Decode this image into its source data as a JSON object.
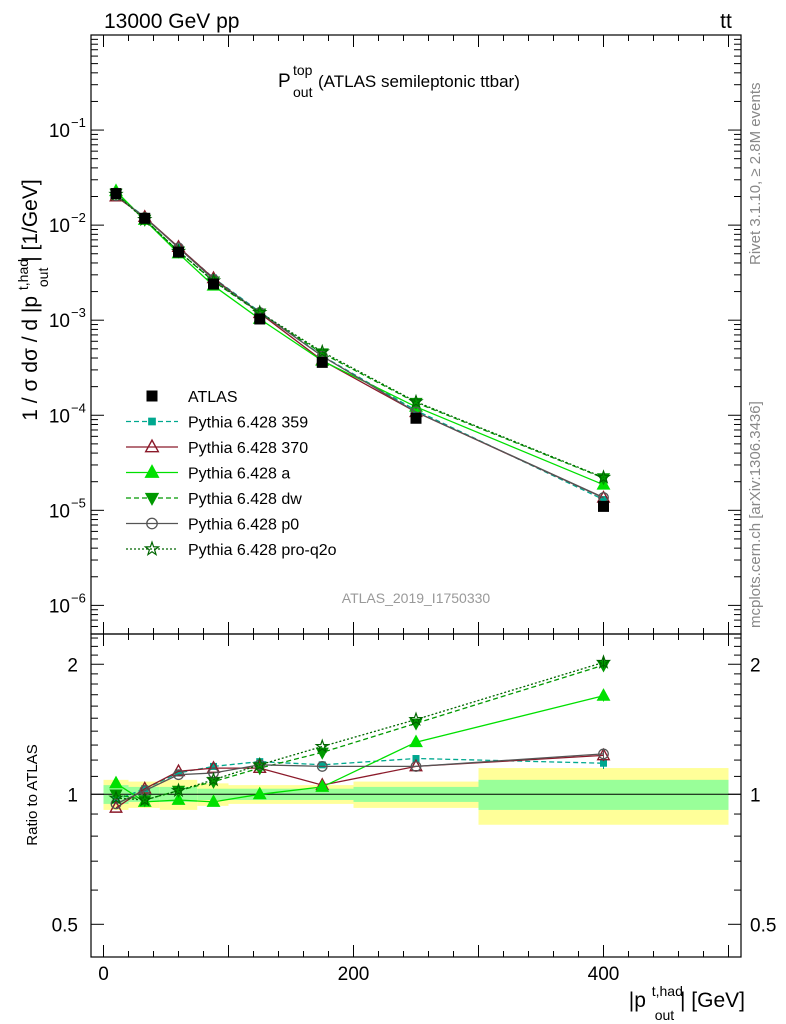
{
  "header": {
    "left": "13000 GeV pp",
    "right_main": "tt",
    "right_bar": "¯"
  },
  "plot_title": {
    "main": "P",
    "sup": "top",
    "sub": "out",
    "rest": " (ATLAS semileptonic ttbar)"
  },
  "side_labels": {
    "rivet": "Rivet 3.1.10, ≥ 2.8M events",
    "mcplots": "mcplots.cern.ch [arXiv:1306.3436]"
  },
  "watermark": "ATLAS_2019_I1750330",
  "main_ylabel": {
    "pre": "1 / σ dσ / d |p",
    "sup": "t,had",
    "sub": "out",
    "post": "| [1/GeV]"
  },
  "ratio_ylabel": "Ratio to ATLAS",
  "xlabel": {
    "pre": "|p",
    "sup": "t,had",
    "sub": "out",
    "post": "| [GeV]"
  },
  "colors": {
    "data": "#000000",
    "p359": "#00a88f",
    "p370": "#8b1a2a",
    "pa": "#00e000",
    "pdw": "#009900",
    "pp0": "#555555",
    "pq2o": "#006600",
    "band_inner": "#99ff99",
    "band_outer": "#ffff99"
  },
  "chart_data": {
    "type": "line",
    "x": [
      10,
      33,
      60,
      88,
      125,
      175,
      250,
      400
    ],
    "bin_edges": [
      0,
      20,
      45,
      75,
      100,
      150,
      200,
      300,
      500
    ],
    "xlim": [
      -10,
      510
    ],
    "xticks": [
      0,
      200,
      400
    ],
    "xticklabels": [
      "0",
      "200",
      "400"
    ],
    "ylim_main": [
      5e-07,
      1
    ],
    "yscale_main": "log",
    "main_yticklabels": [
      {
        "v": 1e-06,
        "b": "10",
        "e": "−6"
      },
      {
        "v": 1e-05,
        "b": "10",
        "e": "−5"
      },
      {
        "v": 0.0001,
        "b": "10",
        "e": "−4"
      },
      {
        "v": 0.001,
        "b": "10",
        "e": "−3"
      },
      {
        "v": 0.01,
        "b": "10",
        "e": "−2"
      },
      {
        "v": 0.1,
        "b": "10",
        "e": "−1"
      }
    ],
    "ylim_ratio": [
      0.42,
      2.35
    ],
    "yscale_ratio": "log",
    "ratio_yticks": [
      0.5,
      1,
      2
    ],
    "ratio_yticklabels": [
      "0.5",
      "1",
      "2"
    ],
    "data": {
      "name": "ATLAS",
      "values": [
        0.0215,
        0.0118,
        0.0052,
        0.0024,
        0.00103,
        0.00036,
        9.3e-05,
        1.1e-05
      ],
      "band_inner": [
        0.05,
        0.04,
        0.04,
        0.03,
        0.03,
        0.03,
        0.04,
        0.08
      ],
      "band_outer": [
        0.08,
        0.07,
        0.08,
        0.06,
        0.05,
        0.05,
        0.07,
        0.15
      ]
    },
    "series": [
      {
        "name": "Pythia 6.428 359",
        "key": "p359",
        "marker": "square",
        "dash": "5,3",
        "ratio": [
          0.97,
          1.03,
          1.12,
          1.16,
          1.19,
          1.17,
          1.21,
          1.18
        ]
      },
      {
        "name": "Pythia 6.428 370",
        "key": "p370",
        "marker": "triangle-open",
        "dash": "",
        "ratio": [
          0.93,
          1.03,
          1.13,
          1.15,
          1.15,
          1.05,
          1.16,
          1.23
        ]
      },
      {
        "name": "Pythia 6.428 a",
        "key": "pa",
        "marker": "triangle",
        "dash": "",
        "ratio": [
          1.06,
          0.96,
          0.97,
          0.96,
          1.0,
          1.04,
          1.32,
          1.69
        ]
      },
      {
        "name": "Pythia 6.428 dw",
        "key": "pdw",
        "marker": "triangle-down",
        "dash": "5,3",
        "ratio": [
          1.0,
          0.97,
          1.02,
          1.07,
          1.15,
          1.25,
          1.46,
          1.99
        ]
      },
      {
        "name": "Pythia 6.428 p0",
        "key": "pp0",
        "marker": "circle-open",
        "dash": "",
        "ratio": [
          0.95,
          1.02,
          1.11,
          1.12,
          1.17,
          1.16,
          1.16,
          1.24
        ]
      },
      {
        "name": "Pythia 6.428 pro-q2o",
        "key": "pq2o",
        "marker": "star",
        "dash": "2,2",
        "ratio": [
          0.98,
          0.97,
          1.02,
          1.08,
          1.17,
          1.29,
          1.49,
          2.02
        ]
      }
    ]
  }
}
